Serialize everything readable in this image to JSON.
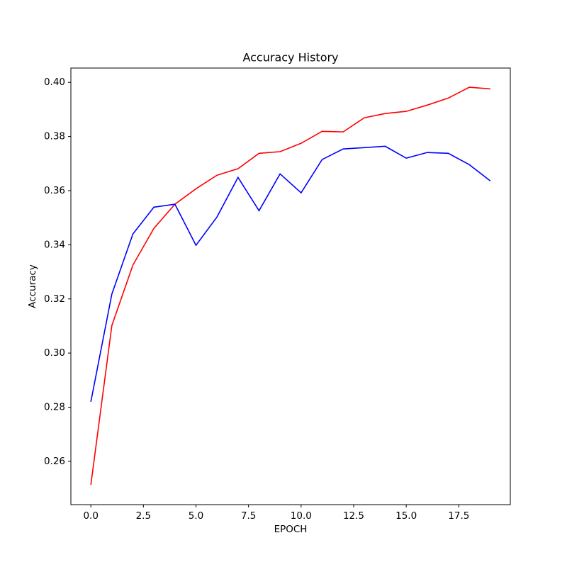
{
  "chart_data": {
    "type": "line",
    "title": "Accuracy History",
    "xlabel": "EPOCH",
    "ylabel": "Accuracy",
    "x": [
      0,
      1,
      2,
      3,
      4,
      5,
      6,
      7,
      8,
      9,
      10,
      11,
      12,
      13,
      14,
      15,
      16,
      17,
      18,
      19
    ],
    "series": [
      {
        "color": "#ff0000",
        "values": [
          0.2513,
          0.3102,
          0.3325,
          0.3461,
          0.355,
          0.3607,
          0.3657,
          0.3681,
          0.3738,
          0.3744,
          0.3775,
          0.3819,
          0.3817,
          0.3869,
          0.3885,
          0.3893,
          0.3916,
          0.3942,
          0.3982,
          0.3976
        ]
      },
      {
        "color": "#0000ff",
        "values": [
          0.282,
          0.3218,
          0.344,
          0.3539,
          0.355,
          0.3398,
          0.3503,
          0.3649,
          0.3526,
          0.3662,
          0.3592,
          0.3715,
          0.3754,
          0.3759,
          0.3764,
          0.372,
          0.3741,
          0.3738,
          0.3696,
          0.3636
        ]
      }
    ],
    "xlim": [
      -0.95,
      19.95
    ],
    "xticks": [
      {
        "value": 0,
        "label": "0.0"
      },
      2.5,
      {
        "value": 5,
        "label": "5.0"
      },
      7.5,
      {
        "value": 10,
        "label": "10.0"
      },
      12.5,
      {
        "value": 15,
        "label": "15.0"
      },
      17.5
    ],
    "ylim": [
      0.244,
      0.4053
    ],
    "yticks": [
      0.26,
      0.28,
      {
        "value": 0.3,
        "label": "0.30"
      },
      0.32,
      0.34,
      0.36,
      0.38,
      {
        "value": 0.4,
        "label": "0.40"
      }
    ]
  }
}
